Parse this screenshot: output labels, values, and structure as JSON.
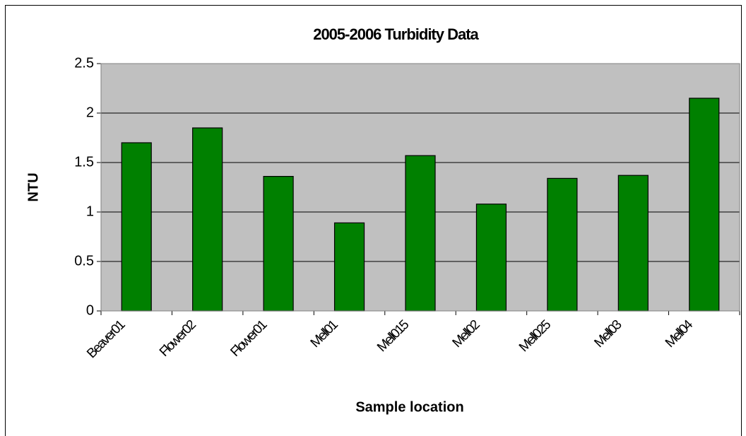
{
  "chart_data": {
    "type": "bar",
    "title": "2005-2006 Turbidity Data",
    "x_label": "Sample location",
    "y_label": "NTU",
    "categories": [
      "Beaver01",
      "Flower02",
      "Flower01",
      "Mell01",
      "Mell015",
      "Mell02",
      "Mell025",
      "Mell03",
      "Mell04"
    ],
    "values": [
      1.7,
      1.85,
      1.36,
      0.89,
      1.57,
      1.08,
      1.34,
      1.37,
      2.15
    ],
    "color": "#008000",
    "plot_background": "#c0c0c0",
    "ylim": [
      0,
      2.5
    ],
    "yticks": [
      0,
      0.5,
      1,
      1.5,
      2,
      2.5
    ],
    "grid": true
  }
}
